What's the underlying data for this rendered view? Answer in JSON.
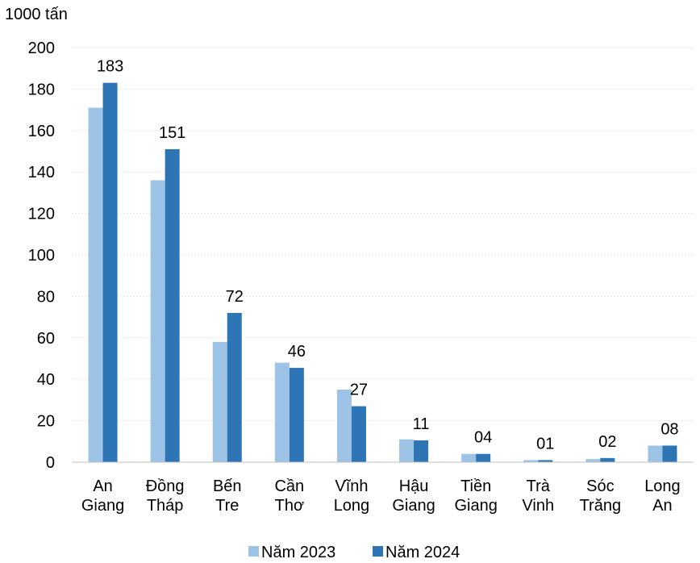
{
  "chart_data": {
    "type": "bar",
    "unit_label": "1000 tấn",
    "categories": [
      [
        "An",
        "Giang"
      ],
      [
        "Đồng",
        "Tháp"
      ],
      [
        "Bến",
        "Tre"
      ],
      [
        "Cần",
        "Thơ"
      ],
      [
        "Vĩnh",
        "Long"
      ],
      [
        "Hậu",
        "Giang"
      ],
      [
        "Tiền",
        "Giang"
      ],
      [
        "Trà",
        "Vinh"
      ],
      [
        "Sóc",
        "Trăng"
      ],
      [
        "Long",
        "An"
      ]
    ],
    "series": [
      {
        "name": "Năm 2023",
        "color": "#9dc3e6",
        "values": [
          171,
          136,
          58,
          48,
          35,
          11,
          4,
          1,
          1.5,
          8
        ]
      },
      {
        "name": "Năm 2024",
        "color": "#2e75b6",
        "values": [
          183,
          151,
          72,
          45.5,
          27,
          10.5,
          4,
          1,
          2,
          8
        ]
      }
    ],
    "data_labels": [
      "183",
      "151",
      "72",
      "46",
      "27",
      "11",
      "04",
      "01",
      "02",
      "08"
    ],
    "ylim": [
      0,
      200
    ],
    "yticks": [
      0,
      20,
      40,
      60,
      80,
      100,
      120,
      140,
      160,
      180,
      200
    ],
    "grid": true,
    "legend_position": "bottom-center"
  }
}
